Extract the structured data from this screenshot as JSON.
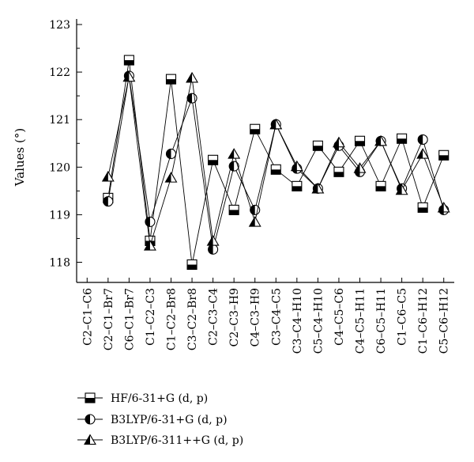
{
  "chart_data": {
    "type": "line",
    "title": "",
    "xlabel": "",
    "ylabel": "Values (°)",
    "ylim": [
      117.5,
      123
    ],
    "yticks": [
      "118",
      "119",
      "120",
      "121",
      "122",
      "123"
    ],
    "grid": false,
    "legend_position": "bottom-left",
    "categories": [
      "C2–C1–C6",
      "C2–C1–Br7",
      "C6–C1–Br7",
      "C1–C2–C3",
      "C1–C2–Br8",
      "C3–C2–Br8",
      "C2–C3–C4",
      "C2–C3–H9",
      "C4–C3–H9",
      "C3–C4–C5",
      "C3–C4–H10",
      "C5–C4–H10",
      "C4–C5–C6",
      "C4–C5–H11",
      "C6–C5–H11",
      "C1–C6–C5",
      "C1–C6–H12",
      "C5–C6–H12"
    ],
    "series": [
      {
        "name": "HF/6-31+G (d, p)",
        "marker": "square",
        "values": [
          null,
          119.35,
          122.25,
          118.45,
          121.85,
          117.95,
          120.15,
          119.1,
          120.8,
          119.95,
          119.6,
          120.45,
          119.9,
          120.55,
          119.6,
          120.6,
          119.15,
          120.25
        ]
      },
      {
        "name": "B3LYP/6-31+G (d, p)",
        "marker": "circle",
        "values": [
          null,
          119.28,
          121.92,
          118.85,
          120.28,
          121.45,
          118.27,
          120.02,
          119.1,
          120.9,
          119.97,
          119.55,
          120.45,
          119.9,
          120.55,
          119.55,
          120.58,
          119.1
        ]
      },
      {
        "name": "B3LYP/6-311++G (d, p)",
        "marker": "triangle",
        "values": [
          null,
          119.8,
          121.9,
          118.35,
          119.78,
          121.88,
          118.45,
          120.28,
          118.85,
          120.9,
          120.02,
          119.55,
          120.52,
          119.98,
          120.55,
          119.52,
          120.28,
          119.15
        ]
      }
    ]
  }
}
